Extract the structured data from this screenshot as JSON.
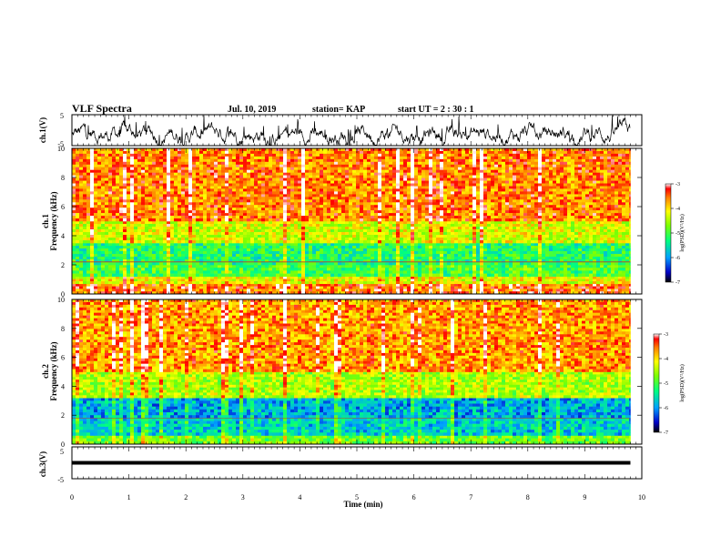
{
  "header": {
    "title": "VLF Spectra",
    "date": "Jul. 10, 2019",
    "station": "station= KAP",
    "start": "start UT =  2 : 30 : 1"
  },
  "chart_data": [
    {
      "type": "line",
      "panel": "ch1-waveform",
      "ylabel": "ch.1(V)",
      "ylim": [
        -5,
        5
      ],
      "yticks": [
        "5",
        "-5"
      ],
      "xlim": [
        0,
        10
      ],
      "description_values": "dense noisy waveform mostly between -5 and 3 V across 0-9.8 min"
    },
    {
      "type": "heatmap",
      "panel": "ch1-spectrogram",
      "ylabel": "ch.1\nFrequency (kHz)",
      "ylabel_top": "ch.1",
      "ylabel_bottom": "Frequency (kHz)",
      "ylim": [
        0,
        10
      ],
      "yticks": [
        "0",
        "2",
        "4",
        "6",
        "8",
        "10"
      ],
      "xlim": [
        0,
        9.8
      ],
      "colorbar": {
        "label": "log(PSD)(V²/Hz)",
        "range": [
          -7,
          -3
        ],
        "ticks": [
          "-3",
          "-4",
          "-5",
          "-6",
          "-7"
        ]
      },
      "bands": [
        {
          "from_khz": 0,
          "to_khz": 0.7,
          "level": -3.5
        },
        {
          "from_khz": 0.7,
          "to_khz": 1.2,
          "level": -4.2
        },
        {
          "from_khz": 1.2,
          "to_khz": 2.0,
          "level": -5.0
        },
        {
          "from_khz": 2.0,
          "to_khz": 3.5,
          "level": -5.2
        },
        {
          "from_khz": 3.5,
          "to_khz": 5.0,
          "level": -4.3
        },
        {
          "from_khz": 5.0,
          "to_khz": 10.0,
          "level": -3.6
        }
      ]
    },
    {
      "type": "heatmap",
      "panel": "ch2-spectrogram",
      "ylabel_top": "ch.2",
      "ylabel_bottom": "Frequency (kHz)",
      "ylim": [
        0,
        10
      ],
      "yticks": [
        "0",
        "2",
        "4",
        "6",
        "8",
        "10"
      ],
      "xlim": [
        0,
        9.8
      ],
      "colorbar": {
        "label": "log(PSD)(V²/Hz)",
        "range": [
          -7,
          -3
        ],
        "ticks": [
          "-3",
          "-4",
          "-5",
          "-6",
          "-7"
        ]
      },
      "bands": [
        {
          "from_khz": 0,
          "to_khz": 0.6,
          "level": -4.8
        },
        {
          "from_khz": 0.6,
          "to_khz": 1.8,
          "level": -5.7
        },
        {
          "from_khz": 1.8,
          "to_khz": 3.2,
          "level": -5.9
        },
        {
          "from_khz": 3.2,
          "to_khz": 5.0,
          "level": -4.5
        },
        {
          "from_khz": 5.0,
          "to_khz": 10.0,
          "level": -3.7
        }
      ]
    },
    {
      "type": "line",
      "panel": "ch3-waveform",
      "ylabel": "ch.3(V)",
      "ylim": [
        -5,
        5
      ],
      "yticks": [
        "5",
        "-5"
      ],
      "xlim": [
        0,
        10
      ],
      "level_v": 0,
      "xlabel": "Time (min)",
      "xticks": [
        "0",
        "1",
        "2",
        "3",
        "4",
        "5",
        "6",
        "7",
        "8",
        "9",
        "10"
      ]
    }
  ]
}
